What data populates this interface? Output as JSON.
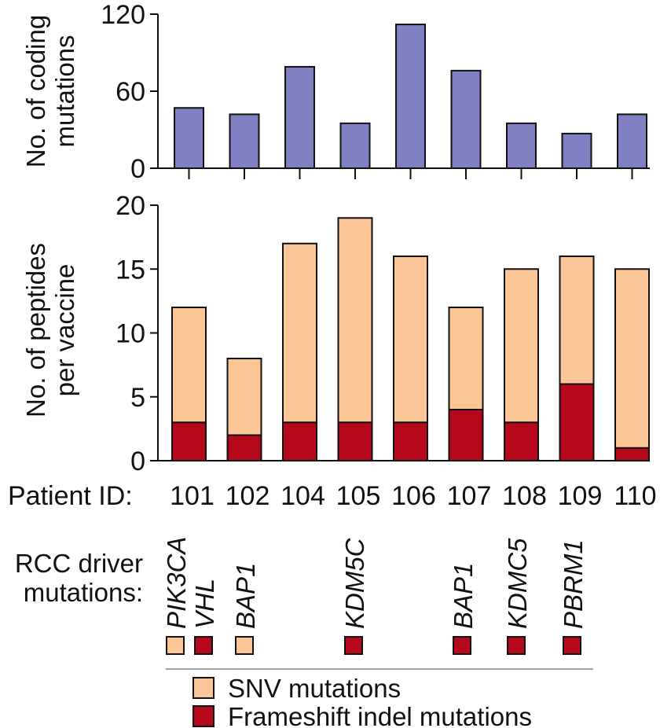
{
  "chart_data": [
    {
      "type": "bar",
      "categories": [
        "101",
        "102",
        "104",
        "105",
        "106",
        "107",
        "108",
        "109",
        "110"
      ],
      "values": [
        47,
        42,
        79,
        35,
        112,
        76,
        35,
        27,
        42
      ],
      "ylabel": [
        "No. of coding",
        "mutations"
      ],
      "yticks": [
        0,
        60,
        120
      ],
      "ylim": [
        0,
        120
      ],
      "grid": false,
      "color": "#8080c2"
    },
    {
      "type": "bar",
      "stacked": true,
      "categories": [
        "101",
        "102",
        "104",
        "105",
        "106",
        "107",
        "108",
        "109",
        "110"
      ],
      "series": [
        {
          "name": "Frameshift indel mutations",
          "values": [
            3,
            2,
            3,
            3,
            3,
            4,
            3,
            6,
            1
          ],
          "color": "#b5081b"
        },
        {
          "name": "SNV mutations",
          "values": [
            9,
            6,
            14,
            16,
            13,
            8,
            12,
            10,
            14
          ],
          "color": "#fcc595"
        }
      ],
      "ylabel": [
        "No. of peptides",
        "per vaccine"
      ],
      "yticks": [
        0,
        5,
        10,
        15,
        20
      ],
      "ylim": [
        0,
        20
      ],
      "grid": false
    }
  ],
  "patient_id_label": "Patient ID:",
  "driver_label": [
    "RCC driver",
    "mutations:"
  ],
  "drivers": [
    {
      "gene": "PIK3CA",
      "type": "SNV mutations"
    },
    {
      "gene": "VHL",
      "type": "Frameshift indel mutations"
    },
    {
      "gene": "BAP1",
      "type": "SNV mutations"
    },
    {
      "gene": "KDM5C",
      "type": "Frameshift indel mutations"
    },
    {
      "gene": "BAP1",
      "type": "Frameshift indel mutations"
    },
    {
      "gene": "KDMC5",
      "type": "Frameshift indel mutations"
    },
    {
      "gene": "PBRM1",
      "type": "Frameshift indel mutations"
    }
  ],
  "legend": {
    "position": "bottom",
    "items": [
      {
        "label": "SNV mutations",
        "color": "#fcc595"
      },
      {
        "label": "Frameshift indel mutations",
        "color": "#b5081b"
      }
    ]
  },
  "colors": {
    "axis": "#111111",
    "stroke": "#111111",
    "divider": "#a0a0a0"
  }
}
